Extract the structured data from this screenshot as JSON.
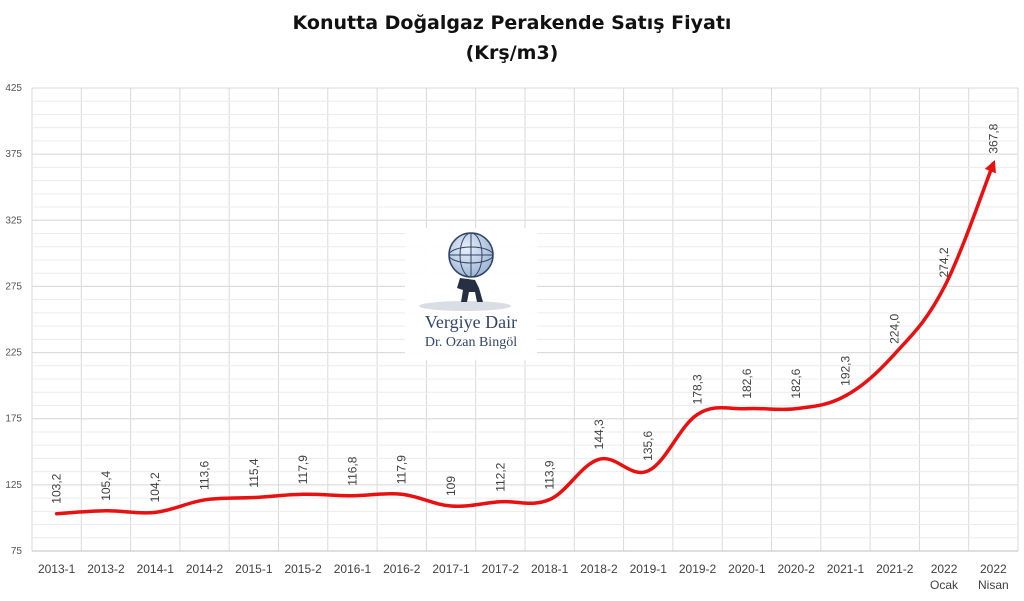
{
  "chart_data": {
    "type": "line",
    "title": "Konutta Doğalgaz Perakende Satış Fiyatı",
    "subtitle": "(Krş/m3)",
    "xlabel": "",
    "ylabel": "",
    "ylim": [
      75,
      425
    ],
    "yticks": [
      "75",
      "125",
      "175",
      "225",
      "275",
      "325",
      "375",
      "425"
    ],
    "categories": [
      [
        "2013-1"
      ],
      [
        "2013-2"
      ],
      [
        "2014-1"
      ],
      [
        "2014-2"
      ],
      [
        "2015-1"
      ],
      [
        "2015-2"
      ],
      [
        "2016-1"
      ],
      [
        "2016-2"
      ],
      [
        "2017-1"
      ],
      [
        "2017-2"
      ],
      [
        "2018-1"
      ],
      [
        "2018-2"
      ],
      [
        "2019-1"
      ],
      [
        "2019-2"
      ],
      [
        "2020-1"
      ],
      [
        "2020-2"
      ],
      [
        "2021-1"
      ],
      [
        "2021-2"
      ],
      [
        "2022",
        "Ocak"
      ],
      [
        "2022",
        "Nisan"
      ]
    ],
    "values": [
      103.2,
      105.4,
      104.2,
      113.6,
      115.4,
      117.9,
      116.8,
      117.9,
      109,
      112.2,
      113.9,
      144.3,
      135.6,
      178.3,
      182.6,
      182.6,
      192.3,
      224.0,
      274.2,
      367.8
    ],
    "data_labels": [
      "103,2",
      "105,4",
      "104,2",
      "113,6",
      "115,4",
      "117,9",
      "116,8",
      "117,9",
      "109",
      "112,2",
      "113,9",
      "144,3",
      "135,6",
      "178,3",
      "182,6",
      "182,6",
      "192,3",
      "224,0",
      "274,2",
      "367,8"
    ],
    "grid": true,
    "legend": "none",
    "line_color": "#e81010",
    "grid_color": "#d9d9d9"
  },
  "watermark": {
    "line1": "Vergiye Dair",
    "line2": "Dr. Ozan Bingöl"
  }
}
